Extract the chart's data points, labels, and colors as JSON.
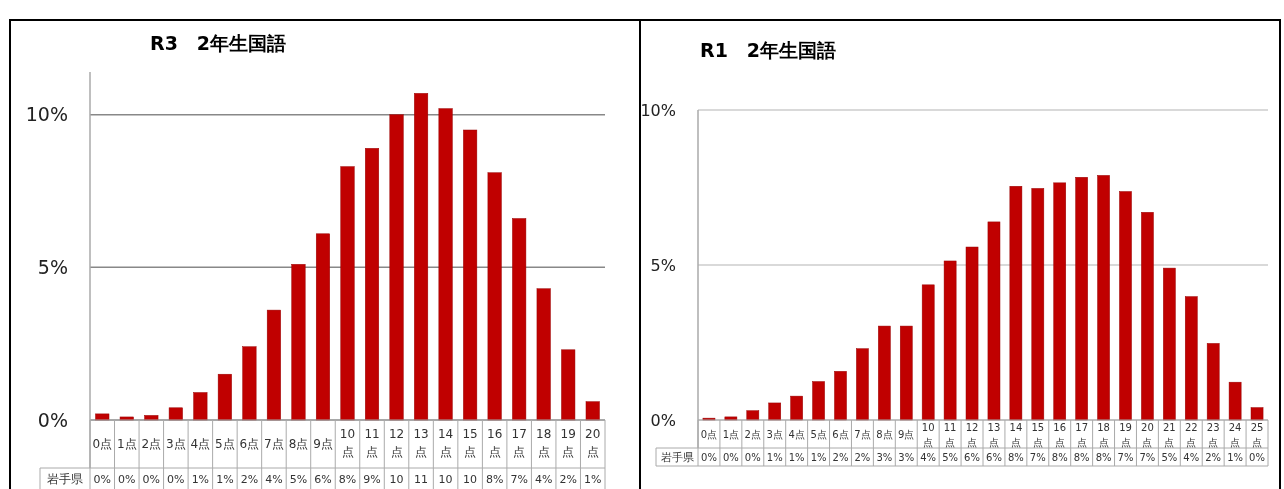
{
  "chart_data": [
    {
      "type": "bar",
      "title": "R3　2年生国語",
      "categories": [
        "0点",
        "1点",
        "2点",
        "3点",
        "4点",
        "5点",
        "6点",
        "7点",
        "8点",
        "9点",
        "10点",
        "11点",
        "12点",
        "13点",
        "14点",
        "15点",
        "16点",
        "17点",
        "18点",
        "19点",
        "20点"
      ],
      "series": [
        {
          "name": "岩手県",
          "color": "#c00000",
          "values": [
            0.2,
            0.1,
            0.15,
            0.4,
            0.9,
            1.5,
            2.4,
            3.6,
            5.1,
            6.1,
            8.3,
            8.9,
            10.0,
            10.7,
            10.2,
            9.5,
            8.1,
            6.6,
            4.3,
            2.3,
            0.6
          ],
          "value_labels": [
            "0%",
            "0%",
            "0%",
            "0%",
            "1%",
            "1%",
            "2%",
            "4%",
            "5%",
            "6%",
            "8%",
            "9%",
            "10",
            "11",
            "10",
            "10",
            "8%",
            "7%",
            "4%",
            "2%",
            "1%"
          ]
        }
      ],
      "ylim": [
        0,
        11.4
      ],
      "yticks": [
        {
          "value": 0,
          "label": "0%"
        },
        {
          "value": 5,
          "label": "5%"
        },
        {
          "value": 10,
          "label": "10%"
        }
      ],
      "grid": "y"
    },
    {
      "type": "bar",
      "title": "R1　2年生国語",
      "categories": [
        "0点",
        "1点",
        "2点",
        "3点",
        "4点",
        "5点",
        "6点",
        "7点",
        "8点",
        "9点",
        "10点",
        "11点",
        "12点",
        "13点",
        "14点",
        "15点",
        "16点",
        "17点",
        "18点",
        "19点",
        "20点",
        "21点",
        "22点",
        "23点",
        "24点",
        "25点"
      ],
      "series": [
        {
          "name": "岩手県",
          "color": "#c00000",
          "values": [
            0.06,
            0.1,
            0.3,
            0.55,
            0.77,
            1.24,
            1.57,
            2.3,
            3.03,
            3.03,
            4.36,
            5.13,
            5.58,
            6.39,
            7.54,
            7.47,
            7.65,
            7.83,
            7.89,
            7.37,
            6.7,
            4.9,
            3.98,
            2.47,
            1.22,
            0.4
          ],
          "value_labels": [
            "0%",
            "0%",
            "0%",
            "1%",
            "1%",
            "1%",
            "2%",
            "2%",
            "3%",
            "3%",
            "4%",
            "5%",
            "6%",
            "6%",
            "8%",
            "7%",
            "8%",
            "8%",
            "8%",
            "7%",
            "7%",
            "5%",
            "4%",
            "2%",
            "1%",
            "0%"
          ]
        }
      ],
      "ylim": [
        0,
        10
      ],
      "yticks": [
        {
          "value": 0,
          "label": "0%"
        },
        {
          "value": 5,
          "label": "5%"
        },
        {
          "value": 10,
          "label": "10%"
        }
      ],
      "grid": "y"
    }
  ]
}
